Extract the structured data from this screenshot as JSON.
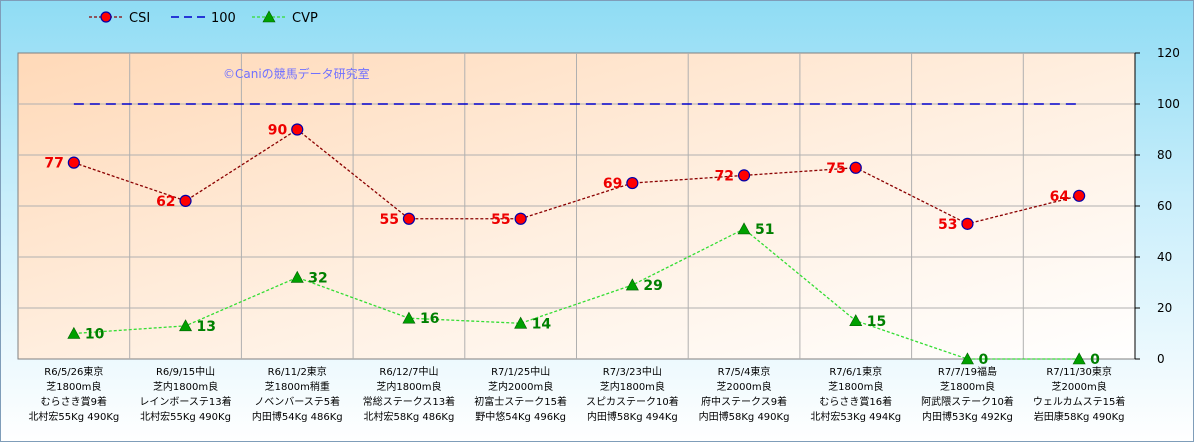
{
  "chart_data": {
    "type": "line",
    "watermark": "©Caniの競馬データ研究室",
    "legend": [
      "CSI",
      "100",
      "CVP"
    ],
    "legend_position": "top-left",
    "ylim": [
      0,
      120
    ],
    "yticks": [
      0,
      20,
      40,
      60,
      80,
      100,
      120
    ],
    "y_axis_side": "right",
    "grid": true,
    "categories": [
      [
        "R6/5/26東京",
        "芝1800m良",
        "むらさき賞9着",
        "北村宏55Kg 490Kg"
      ],
      [
        "R6/9/15中山",
        "芝内1800m良",
        "レインボーステ13着",
        "北村宏55Kg 490Kg"
      ],
      [
        "R6/11/2東京",
        "芝1800m稍重",
        "ノベンバーステ5着",
        "内田博54Kg 486Kg"
      ],
      [
        "R6/12/7中山",
        "芝内1800m良",
        "常総ステークス13着",
        "北村宏58Kg 486Kg"
      ],
      [
        "R7/1/25中山",
        "芝内2000m良",
        "初富士ステーク15着",
        "野中悠54Kg 496Kg"
      ],
      [
        "R7/3/23中山",
        "芝内1800m良",
        "スピカステーク10着",
        "内田博58Kg 494Kg"
      ],
      [
        "R7/5/4東京",
        "芝2000m良",
        "府中ステークス9着",
        "内田博58Kg 490Kg"
      ],
      [
        "R7/6/1東京",
        "芝1800m良",
        "むらさき賞16着",
        "北村宏53Kg 494Kg"
      ],
      [
        "R7/7/19福島",
        "芝1800m良",
        "阿武隈ステーク10着",
        "内田博53Kg 492Kg"
      ],
      [
        "R7/11/30東京",
        "芝2000m良",
        "ウェルカムステ15着",
        "岩田康58Kg 490Kg"
      ]
    ],
    "series": [
      {
        "name": "CSI",
        "values": [
          77,
          62,
          90,
          55,
          55,
          69,
          72,
          75,
          53,
          64
        ],
        "color": "#8b0000",
        "marker": "circle",
        "marker_color": "#ff0000"
      },
      {
        "name": "100",
        "values": [
          100,
          100,
          100,
          100,
          100,
          100,
          100,
          100,
          100,
          100
        ],
        "color": "#0000cc",
        "marker": "none"
      },
      {
        "name": "CVP",
        "values": [
          10,
          13,
          32,
          16,
          14,
          29,
          51,
          15,
          0,
          0
        ],
        "color": "#33dd33",
        "marker": "triangle",
        "marker_color": "#00a000"
      }
    ]
  }
}
